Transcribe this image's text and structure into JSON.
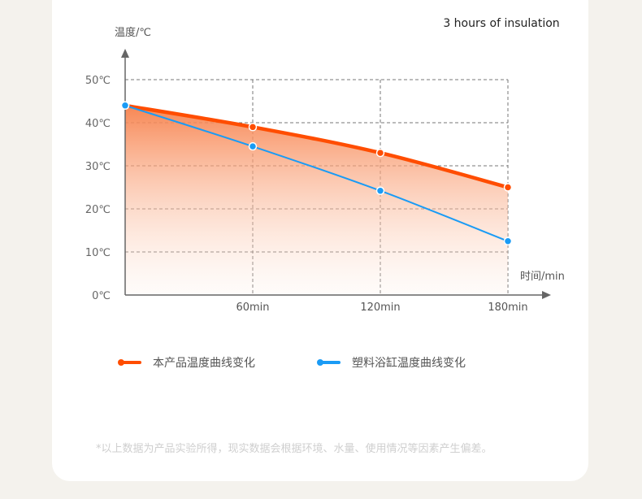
{
  "badge": "3 hours of insulation",
  "chart_data": {
    "type": "line",
    "title": "3 hours of insulation",
    "ylabel": "温度/℃",
    "xlabel": "时间/min",
    "x": [
      0,
      60,
      120,
      180
    ],
    "xticks": [
      "60min",
      "120min",
      "180min"
    ],
    "xtick_values": [
      60,
      120,
      180
    ],
    "yticks": [
      "0℃",
      "10℃",
      "20℃",
      "30℃",
      "40℃",
      "50℃"
    ],
    "ytick_values": [
      0,
      10,
      20,
      30,
      40,
      50
    ],
    "ylim": [
      0,
      50
    ],
    "xlim": [
      0,
      180
    ],
    "grid": true,
    "legend_position": "bottom",
    "series": [
      {
        "name": "本产品温度曲线变化",
        "color": "#ff4d00",
        "values": [
          44,
          39,
          33,
          25
        ],
        "area": true
      },
      {
        "name": "塑料浴缸温度曲线变化",
        "color": "#1a9bf5",
        "values": [
          44,
          34.5,
          24.2,
          12.5
        ]
      }
    ]
  },
  "footnote": "*以上数据为产品实验所得，现实数据会根据环境、水量、使用情况等因素产生偏差。"
}
